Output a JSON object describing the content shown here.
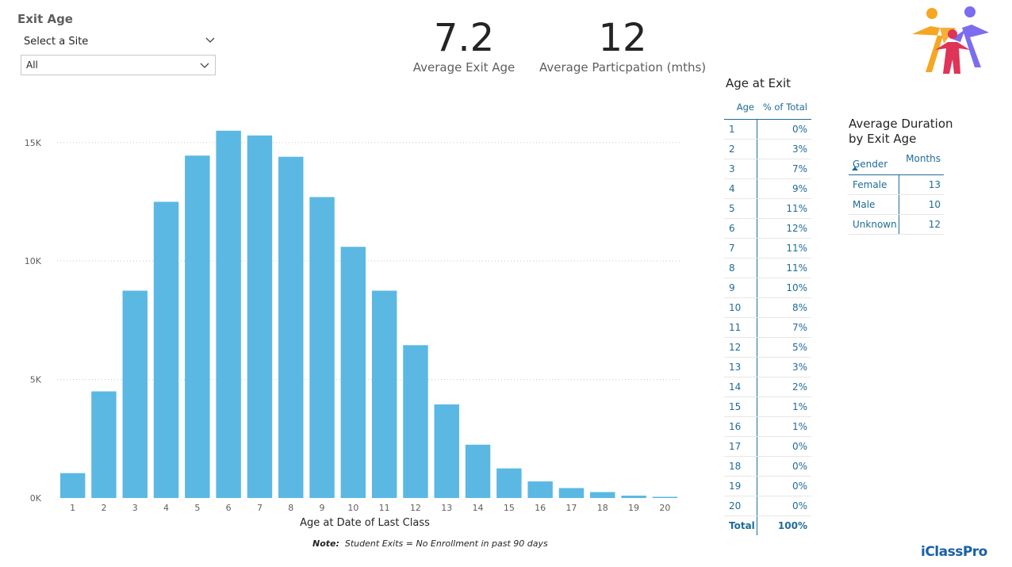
{
  "header": {
    "title": "Exit Age",
    "slicer_label": "Select a Site",
    "slicer_value": "All"
  },
  "kpis": [
    {
      "value": "7.2",
      "label": "Average Exit Age"
    },
    {
      "value": "12",
      "label": "Average Particpation (mths)"
    }
  ],
  "note": {
    "bold": "Note:",
    "text": "Student Exits = No Enrollment in past 90 days"
  },
  "brand": "iClassPro",
  "icons": {
    "chevron": "chevron-down-icon",
    "logo": "people-logo",
    "sort": "sort-ascending-icon"
  },
  "colors": {
    "bar": "#5bb8e3",
    "table_text": "#1f6b99"
  },
  "chart_data": {
    "type": "bar",
    "categories": [
      "1",
      "2",
      "3",
      "4",
      "5",
      "6",
      "7",
      "8",
      "9",
      "10",
      "11",
      "12",
      "13",
      "14",
      "15",
      "16",
      "17",
      "18",
      "19",
      "20"
    ],
    "values": [
      1050,
      4500,
      8750,
      12500,
      14450,
      15500,
      15300,
      14400,
      12700,
      10600,
      8750,
      6450,
      3950,
      2250,
      1250,
      700,
      420,
      250,
      100,
      50
    ],
    "xlabel": "Age at Date of Last Class",
    "ylabel": "",
    "ylim": [
      0,
      17000
    ],
    "yticks": [
      {
        "value": 0,
        "label": "0K"
      },
      {
        "value": 5000,
        "label": "5K"
      },
      {
        "value": 10000,
        "label": "10K"
      },
      {
        "value": 15000,
        "label": "15K"
      }
    ],
    "grid": true
  },
  "age_table": {
    "title": "Age at Exit",
    "headers": [
      "Age",
      "% of Total"
    ],
    "rows": [
      {
        "age": "1",
        "pct": "0%"
      },
      {
        "age": "2",
        "pct": "3%"
      },
      {
        "age": "3",
        "pct": "7%"
      },
      {
        "age": "4",
        "pct": "9%"
      },
      {
        "age": "5",
        "pct": "11%"
      },
      {
        "age": "6",
        "pct": "12%"
      },
      {
        "age": "7",
        "pct": "11%"
      },
      {
        "age": "8",
        "pct": "11%"
      },
      {
        "age": "9",
        "pct": "10%"
      },
      {
        "age": "10",
        "pct": "8%"
      },
      {
        "age": "11",
        "pct": "7%"
      },
      {
        "age": "12",
        "pct": "5%"
      },
      {
        "age": "13",
        "pct": "3%"
      },
      {
        "age": "14",
        "pct": "2%"
      },
      {
        "age": "15",
        "pct": "1%"
      },
      {
        "age": "16",
        "pct": "1%"
      },
      {
        "age": "17",
        "pct": "0%"
      },
      {
        "age": "18",
        "pct": "0%"
      },
      {
        "age": "19",
        "pct": "0%"
      },
      {
        "age": "20",
        "pct": "0%"
      }
    ],
    "total_label": "Total",
    "total_value": "100%"
  },
  "duration_table": {
    "title_line1": "Average Duration",
    "title_line2": "by Exit Age",
    "headers": [
      "Gender",
      "Months"
    ],
    "rows": [
      {
        "gender": "Female",
        "months": "13"
      },
      {
        "gender": "Male",
        "months": "10"
      },
      {
        "gender": "Unknown",
        "months": "12"
      }
    ]
  }
}
